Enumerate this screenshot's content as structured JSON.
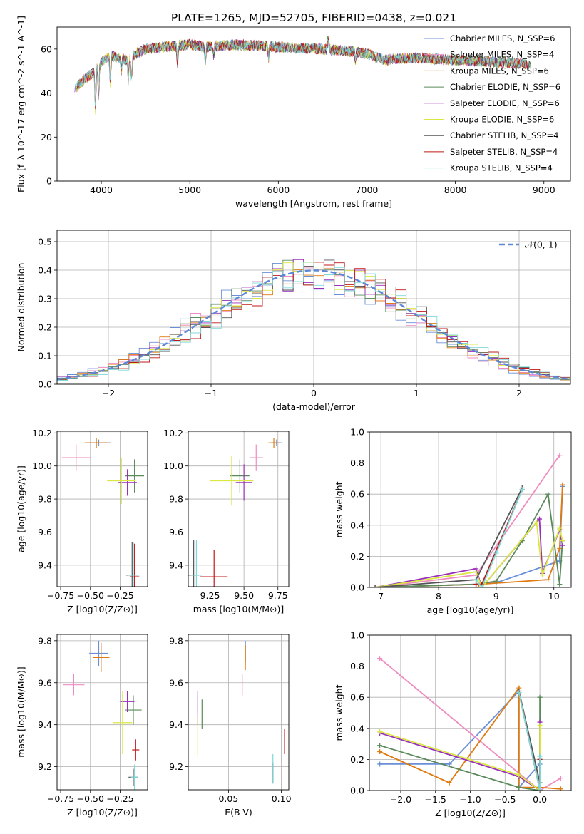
{
  "figure": {
    "title": "PLATE=1265, MJD=52705, FIBERID=0438, z=0.021"
  },
  "chart_data": [
    {
      "id": "spectrum",
      "type": "line",
      "xlabel": "wavelength [Angstrom, rest frame]",
      "ylabel": "Flux [f_λ 10^-17 erg cm^-2 s^-1 A^-1]",
      "xlim": [
        3500,
        9300
      ],
      "ylim": [
        0,
        70
      ],
      "xticks": [
        4000,
        5000,
        6000,
        7000,
        8000,
        9000
      ],
      "yticks": [
        0,
        20,
        40,
        60
      ],
      "grid": false,
      "legend_position": "top-right",
      "wave_range": [
        3700,
        8850
      ],
      "continuum": [
        [
          3700,
          42
        ],
        [
          3800,
          46
        ],
        [
          3900,
          49
        ],
        [
          4000,
          54
        ],
        [
          4100,
          57
        ],
        [
          4200,
          56
        ],
        [
          4300,
          55
        ],
        [
          4400,
          58
        ],
        [
          4500,
          60
        ],
        [
          4700,
          61
        ],
        [
          5000,
          62
        ],
        [
          5200,
          61
        ],
        [
          5500,
          62
        ],
        [
          6000,
          61
        ],
        [
          6500,
          60
        ],
        [
          6800,
          59
        ],
        [
          7000,
          58
        ],
        [
          7200,
          55
        ],
        [
          7500,
          56
        ],
        [
          8000,
          55
        ],
        [
          8500,
          54
        ],
        [
          8850,
          53
        ]
      ],
      "series": [
        {
          "name": "Chabrier MILES, N_SSP=6",
          "color": "#6a8fd8"
        },
        {
          "name": "Salpeter MILES, N_SSP=4",
          "color": "#f08bc0"
        },
        {
          "name": "Kroupa MILES, N_SSP=6",
          "color": "#e07a10"
        },
        {
          "name": "Chabrier ELODIE, N_SSP=6",
          "color": "#5a8a5a"
        },
        {
          "name": "Salpeter ELODIE, N_SSP=6",
          "color": "#9a30b8"
        },
        {
          "name": "Kroupa ELODIE, N_SSP=6",
          "color": "#d8e840"
        },
        {
          "name": "Chabrier STELIB, N_SSP=4",
          "color": "#555555"
        },
        {
          "name": "Salpeter STELIB, N_SSP=4",
          "color": "#c01818"
        },
        {
          "name": "Kroupa STELIB, N_SSP=4",
          "color": "#7fd8d8"
        }
      ]
    },
    {
      "id": "residuals",
      "type": "line",
      "xlabel": "(data-model)/error",
      "ylabel": "Normed distribution",
      "xlim": [
        -2.5,
        2.5
      ],
      "ylim": [
        0,
        0.54
      ],
      "xticks": [
        -2,
        -1,
        0,
        1,
        2
      ],
      "yticks": [
        0.0,
        0.1,
        0.2,
        0.3,
        0.4,
        0.5
      ],
      "grid": true,
      "legend_position": "top-right",
      "reference": {
        "name": "𝒩(0, 1)",
        "color": "#5b87d6",
        "mu": 0,
        "sigma": 1
      },
      "bin_width": 0.1,
      "series_colors": [
        "#6a8fd8",
        "#f08bc0",
        "#e07a10",
        "#5a8a5a",
        "#9a30b8",
        "#d8e840",
        "#555555",
        "#c01818",
        "#7fd8d8"
      ]
    },
    {
      "id": "age_vs_Z",
      "type": "scatter",
      "xlabel": "Z [log10(Z/Z⊙)]",
      "ylabel": "age [log10(age/yr)]",
      "xlim": [
        -0.78,
        -0.02
      ],
      "ylim": [
        9.27,
        10.21
      ],
      "xticks": [
        -0.75,
        -0.5,
        -0.25
      ],
      "yticks": [
        9.4,
        9.6,
        9.8,
        10.0,
        10.2
      ],
      "grid": true,
      "points": [
        {
          "color": "#6a8fd8",
          "x": -0.43,
          "y": 10.14,
          "xerr": 0.1,
          "yerr": 0.02
        },
        {
          "color": "#f08bc0",
          "x": -0.62,
          "y": 10.05,
          "xerr": 0.12,
          "yerr": 0.08
        },
        {
          "color": "#e07a10",
          "x": -0.45,
          "y": 10.14,
          "xerr": 0.1,
          "yerr": 0.03
        },
        {
          "color": "#5a8a5a",
          "x": -0.13,
          "y": 9.94,
          "xerr": 0.08,
          "yerr": 0.1
        },
        {
          "color": "#9a30b8",
          "x": -0.19,
          "y": 9.9,
          "xerr": 0.08,
          "yerr": 0.08
        },
        {
          "color": "#d8e840",
          "x": -0.24,
          "y": 9.91,
          "xerr": 0.12,
          "yerr": 0.14
        },
        {
          "color": "#555555",
          "x": -0.15,
          "y": 9.34,
          "xerr": 0.05,
          "yerr": 0.2
        },
        {
          "color": "#c01818",
          "x": -0.13,
          "y": 9.33,
          "xerr": 0.04,
          "yerr": 0.2
        },
        {
          "color": "#7fd8d8",
          "x": -0.14,
          "y": 9.34,
          "xerr": 0.05,
          "yerr": 0.2
        }
      ]
    },
    {
      "id": "age_vs_mass",
      "type": "scatter",
      "xlabel": "mass [log10(M/M⊙)]",
      "ylabel": "",
      "xlim": [
        9.09,
        9.83
      ],
      "ylim": [
        9.27,
        10.21
      ],
      "xticks": [
        9.25,
        9.5,
        9.75
      ],
      "yticks": [
        9.4,
        9.6,
        9.8,
        10.0,
        10.2
      ],
      "grid": true,
      "points": [
        {
          "color": "#6a8fd8",
          "x": 9.74,
          "y": 10.14,
          "xerr": 0.04,
          "yerr": 0.02
        },
        {
          "color": "#f08bc0",
          "x": 9.59,
          "y": 10.05,
          "xerr": 0.05,
          "yerr": 0.08
        },
        {
          "color": "#e07a10",
          "x": 9.72,
          "y": 10.14,
          "xerr": 0.04,
          "yerr": 0.03
        },
        {
          "color": "#5a8a5a",
          "x": 9.47,
          "y": 9.94,
          "xerr": 0.07,
          "yerr": 0.1
        },
        {
          "color": "#9a30b8",
          "x": 9.5,
          "y": 9.9,
          "xerr": 0.06,
          "yerr": 0.11
        },
        {
          "color": "#d8e840",
          "x": 9.41,
          "y": 9.91,
          "xerr": 0.16,
          "yerr": 0.15
        },
        {
          "color": "#555555",
          "x": 9.13,
          "y": 9.34,
          "xerr": 0.04,
          "yerr": 0.21
        },
        {
          "color": "#c01818",
          "x": 9.28,
          "y": 9.33,
          "xerr": 0.1,
          "yerr": 0.16
        },
        {
          "color": "#7fd8d8",
          "x": 9.15,
          "y": 9.34,
          "xerr": 0.04,
          "yerr": 0.21
        }
      ]
    },
    {
      "id": "weight_vs_age",
      "type": "line",
      "xlabel": "age [log10(age/yr)]",
      "ylabel": "mass weight",
      "xlim": [
        6.8,
        10.3
      ],
      "ylim": [
        0,
        1.0
      ],
      "xticks": [
        7,
        8,
        9,
        10
      ],
      "yticks": [
        0.0,
        0.2,
        0.4,
        0.6,
        0.8,
        1.0
      ],
      "grid": true,
      "series": [
        {
          "color": "#6a8fd8",
          "x": [
            6.9,
            8.65,
            9.0,
            10.1,
            10.15
          ],
          "y": [
            0.0,
            0.02,
            0.03,
            0.17,
            0.65
          ]
        },
        {
          "color": "#f08bc0",
          "x": [
            6.9,
            8.65,
            10.1
          ],
          "y": [
            0.0,
            0.08,
            0.85
          ]
        },
        {
          "color": "#e07a10",
          "x": [
            6.9,
            8.7,
            9.9,
            10.1,
            10.15
          ],
          "y": [
            0.0,
            0.02,
            0.05,
            0.25,
            0.66
          ]
        },
        {
          "color": "#5a8a5a",
          "x": [
            6.9,
            8.65,
            9.0,
            9.45,
            9.9,
            10.1,
            10.15
          ],
          "y": [
            0.0,
            0.02,
            0.04,
            0.3,
            0.6,
            0.02,
            0.3
          ]
        },
        {
          "color": "#9a30b8",
          "x": [
            6.9,
            8.65,
            8.75,
            9.75,
            9.8,
            10.1,
            10.15
          ],
          "y": [
            0.0,
            0.12,
            0.0,
            0.44,
            0.09,
            0.37,
            0.27
          ]
        },
        {
          "color": "#d8e840",
          "x": [
            6.9,
            8.65,
            8.75,
            9.7,
            9.8,
            10.1,
            10.15
          ],
          "y": [
            0.0,
            0.1,
            0.0,
            0.42,
            0.08,
            0.38,
            0.3
          ]
        },
        {
          "color": "#555555",
          "x": [
            6.9,
            8.65,
            9.45
          ],
          "y": [
            0.0,
            0.05,
            0.64
          ]
        },
        {
          "color": "#c01818",
          "x": [
            8.65,
            8.75,
            9.45
          ],
          "y": [
            0.02,
            0.02,
            0.63
          ]
        },
        {
          "color": "#7fd8d8",
          "x": [
            8.65,
            8.75,
            9.0,
            9.45
          ],
          "y": [
            0.05,
            0.0,
            0.22,
            0.63
          ]
        }
      ]
    },
    {
      "id": "mass_vs_Z",
      "type": "scatter",
      "xlabel": "Z [log10(Z/Z⊙)]",
      "ylabel": "mass [log10(M/M⊙)]",
      "xlim": [
        -0.78,
        -0.02
      ],
      "ylim": [
        9.09,
        9.83
      ],
      "xticks": [
        -0.75,
        -0.5,
        -0.25
      ],
      "yticks": [
        9.2,
        9.4,
        9.6,
        9.8
      ],
      "grid": true,
      "points": [
        {
          "color": "#6a8fd8",
          "x": -0.43,
          "y": 9.74,
          "xerr": 0.08,
          "yerr": 0.06
        },
        {
          "color": "#f08bc0",
          "x": -0.64,
          "y": 9.59,
          "xerr": 0.09,
          "yerr": 0.05
        },
        {
          "color": "#e07a10",
          "x": -0.41,
          "y": 9.72,
          "xerr": 0.07,
          "yerr": 0.07
        },
        {
          "color": "#5a8a5a",
          "x": -0.14,
          "y": 9.47,
          "xerr": 0.07,
          "yerr": 0.07
        },
        {
          "color": "#9a30b8",
          "x": -0.19,
          "y": 9.51,
          "xerr": 0.06,
          "yerr": 0.05
        },
        {
          "color": "#d8e840",
          "x": -0.23,
          "y": 9.41,
          "xerr": 0.08,
          "yerr": 0.15
        },
        {
          "color": "#555555",
          "x": -0.14,
          "y": 9.15,
          "xerr": 0.04,
          "yerr": 0.04
        },
        {
          "color": "#c01818",
          "x": -0.12,
          "y": 9.28,
          "xerr": 0.03,
          "yerr": 0.05
        },
        {
          "color": "#7fd8d8",
          "x": -0.13,
          "y": 9.15,
          "xerr": 0.03,
          "yerr": 0.06
        }
      ]
    },
    {
      "id": "mass_vs_EBV",
      "type": "scatter",
      "xlabel": "E(B-V)",
      "ylabel": "",
      "xlim": [
        0.012,
        0.107
      ],
      "ylim": [
        9.09,
        9.83
      ],
      "xticks": [
        0.05,
        0.1
      ],
      "xtick_labels": [
        "0.05",
        "0.10"
      ],
      "yticks": [
        9.2,
        9.4,
        9.6,
        9.8
      ],
      "grid": true,
      "points": [
        {
          "color": "#6a8fd8",
          "x": 0.066,
          "y": 9.75,
          "yerr": 0.05
        },
        {
          "color": "#f08bc0",
          "x": 0.063,
          "y": 9.59,
          "yerr": 0.05
        },
        {
          "color": "#e07a10",
          "x": 0.066,
          "y": 9.72,
          "yerr": 0.06
        },
        {
          "color": "#5a8a5a",
          "x": 0.025,
          "y": 9.45,
          "yerr": 0.07
        },
        {
          "color": "#9a30b8",
          "x": 0.021,
          "y": 9.48,
          "yerr": 0.08
        },
        {
          "color": "#d8e840",
          "x": 0.021,
          "y": 9.35,
          "yerr": 0.1
        },
        {
          "color": "#555555",
          "x": 0.092,
          "y": 9.17,
          "yerr": 0.05
        },
        {
          "color": "#c01818",
          "x": 0.103,
          "y": 9.32,
          "yerr": 0.06
        },
        {
          "color": "#7fd8d8",
          "x": 0.092,
          "y": 9.19,
          "yerr": 0.07
        }
      ]
    },
    {
      "id": "weight_vs_Z",
      "type": "line",
      "xlabel": "Z [log10(Z/Z⊙)]",
      "ylabel": "mass weight",
      "xlim": [
        -2.45,
        0.45
      ],
      "ylim": [
        0,
        1.0
      ],
      "xticks": [
        -2.0,
        -1.5,
        -1.0,
        -0.5,
        0.0
      ],
      "yticks": [
        0.0,
        0.2,
        0.4,
        0.6,
        0.8,
        1.0
      ],
      "grid": true,
      "series": [
        {
          "color": "#6a8fd8",
          "x": [
            -2.3,
            -1.3,
            -0.3,
            -0.3,
            0.0
          ],
          "y": [
            0.17,
            0.17,
            0.64,
            0.02,
            0.17
          ]
        },
        {
          "color": "#f08bc0",
          "x": [
            -2.3,
            0.0,
            0.3
          ],
          "y": [
            0.85,
            0.0,
            0.08
          ]
        },
        {
          "color": "#e07a10",
          "x": [
            -2.3,
            -1.3,
            -0.3,
            -0.3,
            0.0,
            0.3
          ],
          "y": [
            0.25,
            0.05,
            0.66,
            0.02,
            0.02,
            0.01
          ]
        },
        {
          "color": "#5a8a5a",
          "x": [
            -2.3,
            -0.3,
            0.0,
            0.0
          ],
          "y": [
            0.29,
            0.02,
            0.0,
            0.6
          ]
        },
        {
          "color": "#9a30b8",
          "x": [
            -2.3,
            -0.3,
            0.0,
            0.0
          ],
          "y": [
            0.37,
            0.09,
            0.0,
            0.44
          ]
        },
        {
          "color": "#d8e840",
          "x": [
            -2.3,
            -0.3,
            0.0,
            0.0
          ],
          "y": [
            0.38,
            0.1,
            0.0,
            0.42
          ]
        },
        {
          "color": "#555555",
          "x": [
            -0.3,
            0.0,
            0.0
          ],
          "y": [
            0.64,
            0.05,
            0.2
          ]
        },
        {
          "color": "#c01818",
          "x": [
            -0.3,
            0.0,
            0.0
          ],
          "y": [
            0.63,
            0.0,
            0.2
          ]
        },
        {
          "color": "#7fd8d8",
          "x": [
            -0.3,
            0.0,
            0.0
          ],
          "y": [
            0.63,
            0.0,
            0.22
          ]
        }
      ]
    }
  ]
}
